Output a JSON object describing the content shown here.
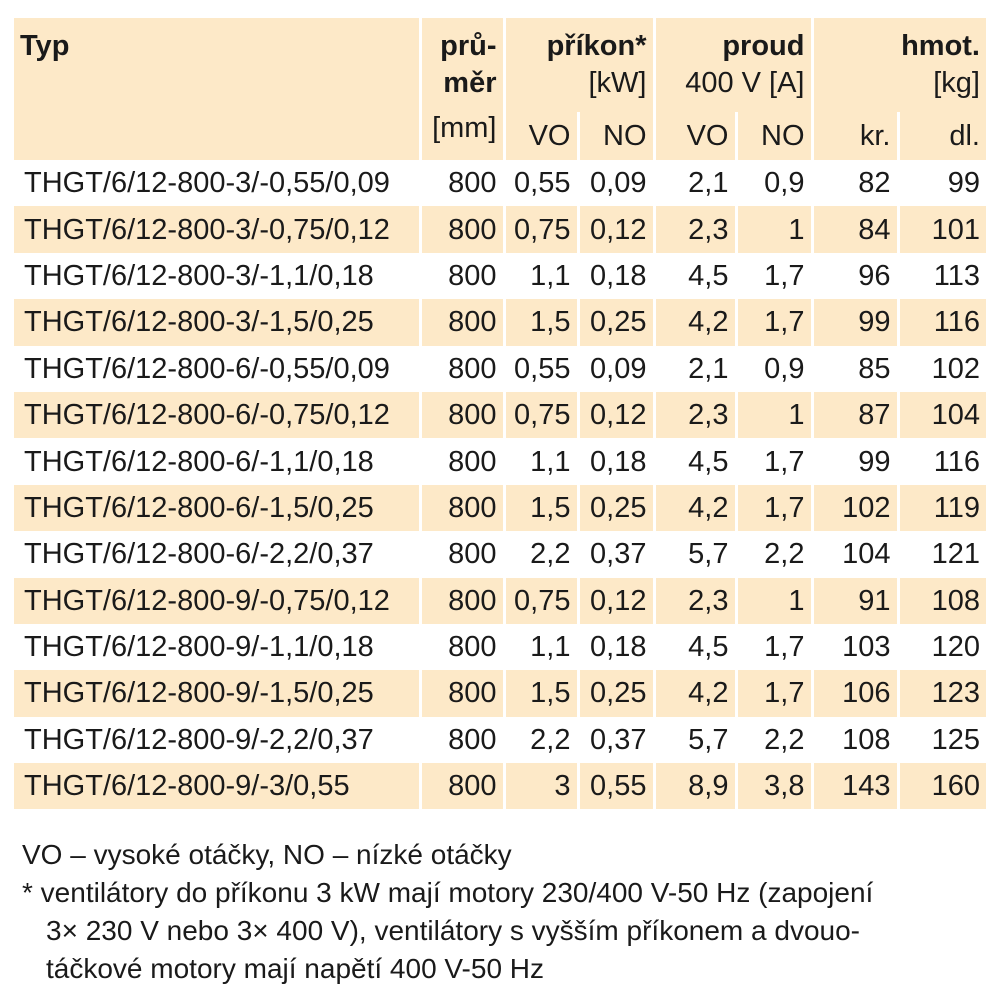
{
  "header": {
    "typ": "Typ",
    "prumer_line1": "prů-",
    "prumer_line2": "měr",
    "prumer_unit": "[mm]",
    "prikon_title": "příkon*",
    "prikon_unit": "[kW]",
    "proud_title": "proud",
    "proud_unit": "400 V [A]",
    "hmot_title": "hmot.",
    "hmot_unit": "[kg]",
    "sub_vo": "VO",
    "sub_no": "NO",
    "sub_vo2": "VO",
    "sub_no2": "NO",
    "sub_kr": "kr.",
    "sub_dl": "dl."
  },
  "rows": [
    {
      "typ": "THGT/6/12-800-3/-0,55/0,09",
      "prumer": "800",
      "prikon_vo": "0,55",
      "prikon_no": "0,09",
      "proud_vo": "2,1",
      "proud_no": "0,9",
      "hmot_kr": "82",
      "hmot_dl": "99"
    },
    {
      "typ": "THGT/6/12-800-3/-0,75/0,12",
      "prumer": "800",
      "prikon_vo": "0,75",
      "prikon_no": "0,12",
      "proud_vo": "2,3",
      "proud_no": "1",
      "hmot_kr": "84",
      "hmot_dl": "101"
    },
    {
      "typ": "THGT/6/12-800-3/-1,1/0,18",
      "prumer": "800",
      "prikon_vo": "1,1",
      "prikon_no": "0,18",
      "proud_vo": "4,5",
      "proud_no": "1,7",
      "hmot_kr": "96",
      "hmot_dl": "113"
    },
    {
      "typ": "THGT/6/12-800-3/-1,5/0,25",
      "prumer": "800",
      "prikon_vo": "1,5",
      "prikon_no": "0,25",
      "proud_vo": "4,2",
      "proud_no": "1,7",
      "hmot_kr": "99",
      "hmot_dl": "116"
    },
    {
      "typ": "THGT/6/12-800-6/-0,55/0,09",
      "prumer": "800",
      "prikon_vo": "0,55",
      "prikon_no": "0,09",
      "proud_vo": "2,1",
      "proud_no": "0,9",
      "hmot_kr": "85",
      "hmot_dl": "102"
    },
    {
      "typ": "THGT/6/12-800-6/-0,75/0,12",
      "prumer": "800",
      "prikon_vo": "0,75",
      "prikon_no": "0,12",
      "proud_vo": "2,3",
      "proud_no": "1",
      "hmot_kr": "87",
      "hmot_dl": "104"
    },
    {
      "typ": "THGT/6/12-800-6/-1,1/0,18",
      "prumer": "800",
      "prikon_vo": "1,1",
      "prikon_no": "0,18",
      "proud_vo": "4,5",
      "proud_no": "1,7",
      "hmot_kr": "99",
      "hmot_dl": "116"
    },
    {
      "typ": "THGT/6/12-800-6/-1,5/0,25",
      "prumer": "800",
      "prikon_vo": "1,5",
      "prikon_no": "0,25",
      "proud_vo": "4,2",
      "proud_no": "1,7",
      "hmot_kr": "102",
      "hmot_dl": "119"
    },
    {
      "typ": "THGT/6/12-800-6/-2,2/0,37",
      "prumer": "800",
      "prikon_vo": "2,2",
      "prikon_no": "0,37",
      "proud_vo": "5,7",
      "proud_no": "2,2",
      "hmot_kr": "104",
      "hmot_dl": "121"
    },
    {
      "typ": "THGT/6/12-800-9/-0,75/0,12",
      "prumer": "800",
      "prikon_vo": "0,75",
      "prikon_no": "0,12",
      "proud_vo": "2,3",
      "proud_no": "1",
      "hmot_kr": "91",
      "hmot_dl": "108"
    },
    {
      "typ": "THGT/6/12-800-9/-1,1/0,18",
      "prumer": "800",
      "prikon_vo": "1,1",
      "prikon_no": "0,18",
      "proud_vo": "4,5",
      "proud_no": "1,7",
      "hmot_kr": "103",
      "hmot_dl": "120"
    },
    {
      "typ": "THGT/6/12-800-9/-1,5/0,25",
      "prumer": "800",
      "prikon_vo": "1,5",
      "prikon_no": "0,25",
      "proud_vo": "4,2",
      "proud_no": "1,7",
      "hmot_kr": "106",
      "hmot_dl": "123"
    },
    {
      "typ": "THGT/6/12-800-9/-2,2/0,37",
      "prumer": "800",
      "prikon_vo": "2,2",
      "prikon_no": "0,37",
      "proud_vo": "5,7",
      "proud_no": "2,2",
      "hmot_kr": "108",
      "hmot_dl": "125"
    },
    {
      "typ": "THGT/6/12-800-9/-3/0,55",
      "prumer": "800",
      "prikon_vo": "3",
      "prikon_no": "0,55",
      "proud_vo": "8,9",
      "proud_no": "3,8",
      "hmot_kr": "143",
      "hmot_dl": "160"
    }
  ],
  "notes": {
    "line1": "VO – vysoké otáčky, NO – nízké otáčky",
    "line2": "* ventilátory do příkonu 3 kW mají motory 230/400 V-50 Hz (zapojení",
    "line3": "3× 230 V nebo 3× 400 V), ventilátory s vyšším příkonem a dvouo-",
    "line4": "táčkové motory mají napětí 400 V-50 Hz"
  },
  "colors": {
    "stripe": "#fde9c8",
    "text": "#1a1a1a"
  }
}
